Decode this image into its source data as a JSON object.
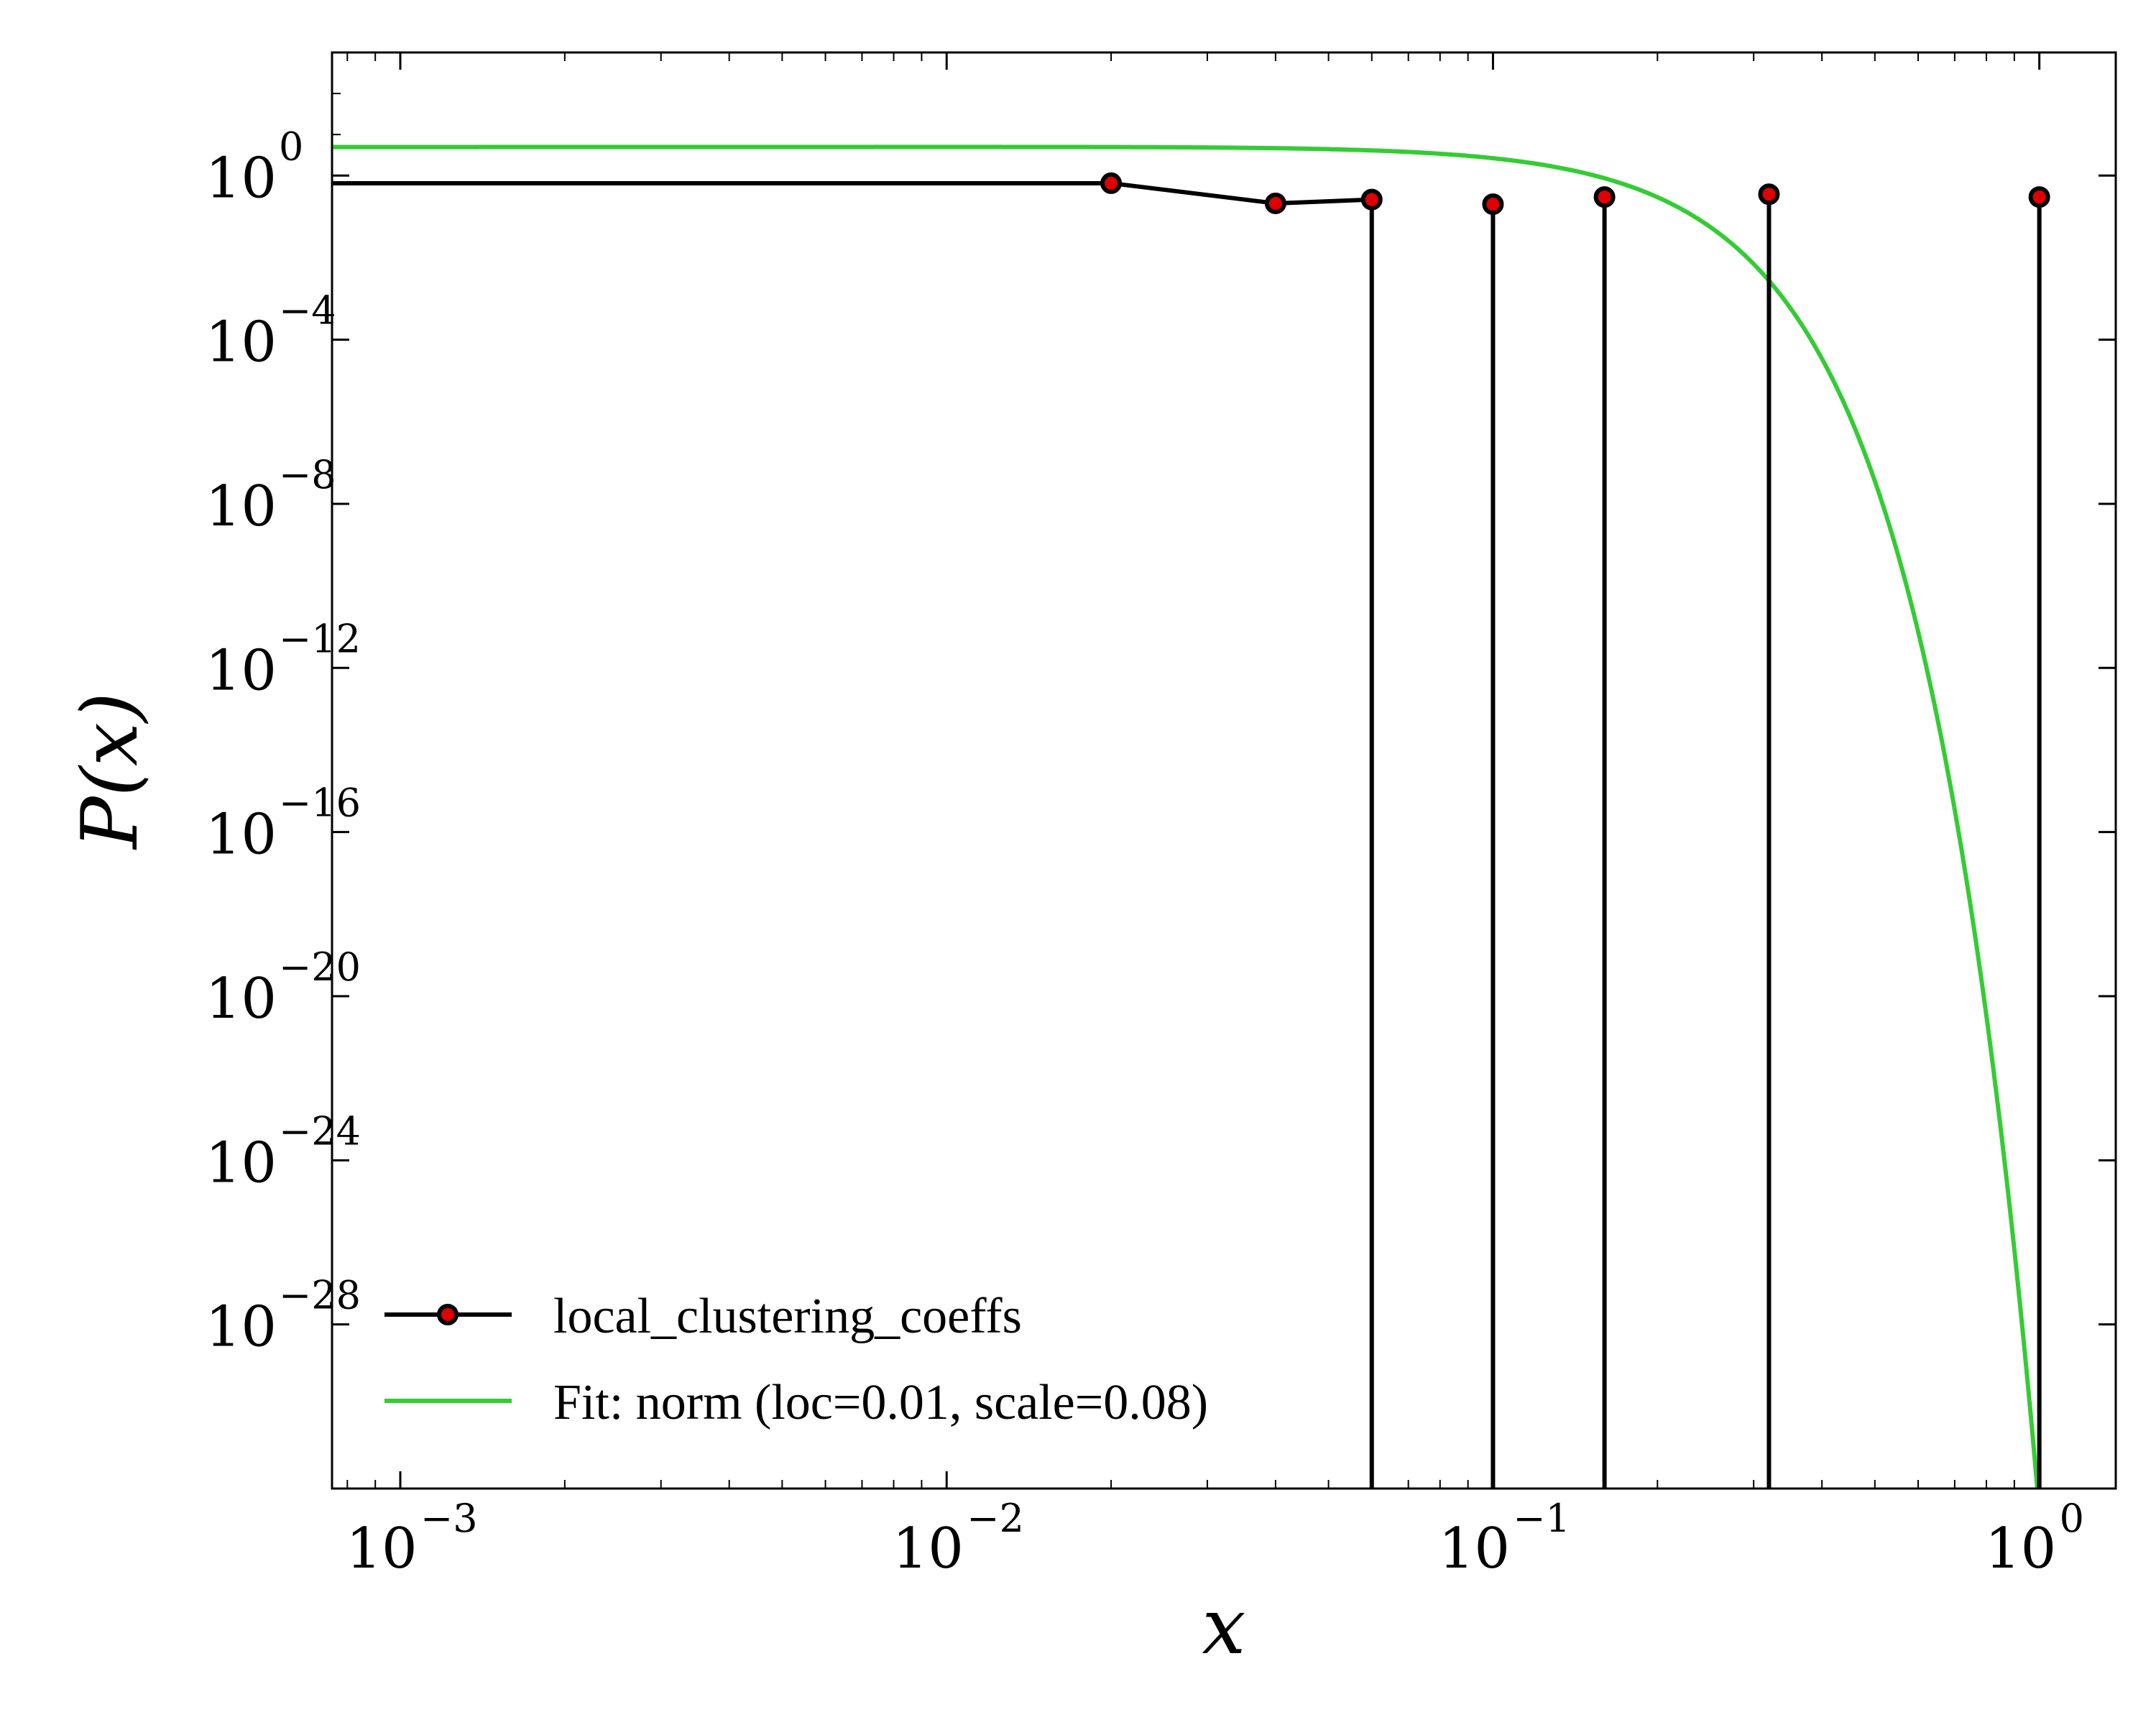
{
  "chart_data": {
    "type": "line",
    "xscale": "log",
    "yscale": "log",
    "xlabel": "x",
    "ylabel": "P(x)",
    "xlim": [
      0.00075,
      1.38
    ],
    "ylim": [
      1e-32,
      1000.0
    ],
    "grid": false,
    "x_ticks": [
      {
        "base": "10",
        "exp": "−3",
        "value": 0.001
      },
      {
        "base": "10",
        "exp": "−2",
        "value": 0.01
      },
      {
        "base": "10",
        "exp": "−1",
        "value": 0.1
      },
      {
        "base": "10",
        "exp": "0",
        "value": 1
      }
    ],
    "y_ticks": [
      {
        "base": "10",
        "exp": "0",
        "value": 1
      },
      {
        "base": "10",
        "exp": "−4",
        "value": 0.0001
      },
      {
        "base": "10",
        "exp": "−8",
        "value": 1e-08
      },
      {
        "base": "10",
        "exp": "−12",
        "value": 1e-12
      },
      {
        "base": "10",
        "exp": "−16",
        "value": 1e-16
      },
      {
        "base": "10",
        "exp": "−20",
        "value": 1e-20
      },
      {
        "base": "10",
        "exp": "−24",
        "value": 1e-24
      },
      {
        "base": "10",
        "exp": "−28",
        "value": 1e-28
      }
    ],
    "series": [
      {
        "name": "local_clustering_coeffs",
        "color": "#000000",
        "marker_color": "#e00000",
        "x": [
          0.0001,
          0.02,
          0.04,
          0.06,
          0.1,
          0.16,
          0.32,
          1.0
        ],
        "y": [
          0.65,
          0.65,
          0.21,
          0.26,
          0.2,
          0.3,
          0.35,
          0.3
        ],
        "markers": [
          false,
          true,
          true,
          true,
          true,
          true,
          true,
          true
        ],
        "drop_to_zero_after": [
          0.06,
          0.1,
          0.16,
          0.32
        ]
      },
      {
        "name": "Fit: norm (loc=0.01, scale=0.08)",
        "color": "#33cc33",
        "distribution": "norm",
        "loc": 0.01,
        "scale": 0.08
      }
    ],
    "legend_position": "lower left"
  }
}
